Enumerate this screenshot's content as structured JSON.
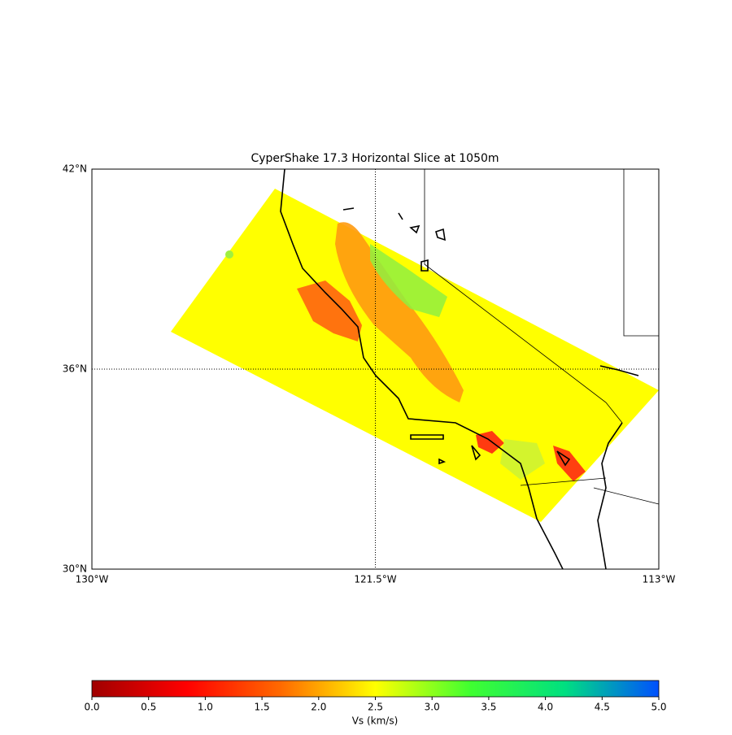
{
  "chart_data": {
    "type": "map",
    "title": "CyperShake 17.3 Horizontal Slice at 1050m",
    "xlim": [
      -130,
      -113
    ],
    "xticks": [
      {
        "value": -130,
        "label": "130°W"
      },
      {
        "value": -121.5,
        "label": "121.5°W"
      },
      {
        "value": -113,
        "label": "113°W"
      }
    ],
    "ylim": [
      30,
      42
    ],
    "yticks": [
      {
        "value": 30,
        "label": "30°N"
      },
      {
        "value": 36,
        "label": "36°N"
      },
      {
        "value": 42,
        "label": "42°N"
      }
    ],
    "grid": true,
    "colorbar": {
      "label": "Vs (km/s)",
      "lim": [
        0,
        5
      ],
      "ticks": [
        {
          "value": 0,
          "label": "0.0"
        },
        0.5,
        {
          "value": 1,
          "label": "1.0"
        },
        1.5,
        {
          "value": 2,
          "label": "2.0"
        },
        2.5,
        {
          "value": 3,
          "label": "3.0"
        },
        3.5,
        {
          "value": 4,
          "label": "4.0"
        },
        4.5,
        {
          "value": 5,
          "label": "5.0"
        }
      ],
      "colors": [
        "#a00000",
        "#ff0000",
        "#ff6a00",
        "#ffff00",
        "#40ff30",
        "#00e080",
        "#0050ff"
      ]
    }
  }
}
